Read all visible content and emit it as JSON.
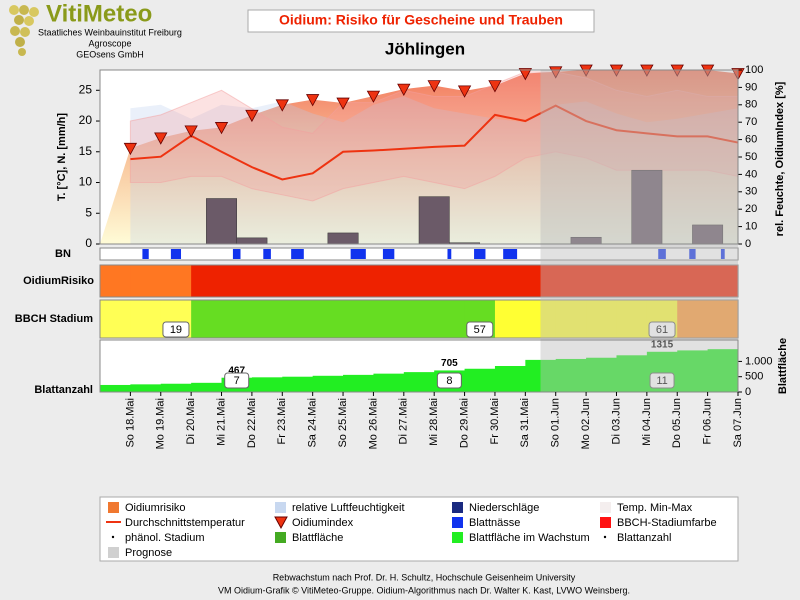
{
  "header": {
    "logo": "VitiMeteo",
    "lines": [
      "Staatliches Weinbauinstitut Freiburg",
      "Agroscope",
      "GEOsens GmbH"
    ]
  },
  "title": "Oidium: Risiko für Gescheine und Trauben",
  "subtitle": "Jöhlingen",
  "chart_data": {
    "type": "combo",
    "categories": [
      "So 18.Mai",
      "Mo 19.Mai",
      "Di 20.Mai",
      "Mi 21.Mai",
      "Do 22.Mai",
      "Fr 23.Mai",
      "Sa 24.Mai",
      "So 25.Mai",
      "Mo 26.Mai",
      "Di 27.Mai",
      "Mi 28.Mai",
      "Do 29.Mai",
      "Fr 30.Mai",
      "Sa 31.Mai",
      "So 01.Jun",
      "Mo 02.Jun",
      "Di 03.Jun",
      "Mi 04.Jun",
      "Do 05.Jun",
      "Fr 06.Jun",
      "Sa 07.Jun"
    ],
    "ylabel": "T. [°C], N. [mm/h]",
    "y2label": "rel. Feuchte, OidiumIndex [%]",
    "ylim": [
      0,
      28.3
    ],
    "yticks": [
      0,
      5,
      10,
      15,
      20,
      25
    ],
    "y2lim": [
      0,
      100
    ],
    "y2ticks": [
      0,
      10,
      20,
      30,
      40,
      50,
      60,
      70,
      80,
      90,
      100
    ],
    "humidity": {
      "color": "#b8cdee",
      "axis": "y2",
      "values": [
        78,
        80,
        72,
        80,
        78,
        82,
        75,
        70,
        80,
        85,
        78,
        75,
        72,
        70,
        80,
        82,
        75,
        70,
        72,
        75,
        78
      ]
    },
    "oidium_index": {
      "color": "#ee3311",
      "axis": "y2",
      "values": [
        55,
        61,
        65,
        67,
        74,
        80,
        83,
        81,
        85,
        89,
        91,
        88,
        91,
        98,
        99,
        100,
        100,
        100,
        100,
        100,
        98
      ]
    },
    "temp_min": {
      "values": [
        10,
        10,
        11,
        11,
        9,
        8,
        7,
        9,
        10,
        11,
        10,
        9,
        11,
        14,
        15,
        14,
        12,
        12,
        12,
        12,
        11
      ]
    },
    "temp_max": {
      "values": [
        20,
        21,
        23,
        25,
        22,
        19,
        18,
        23,
        23,
        25,
        24,
        24,
        26,
        28,
        28,
        27,
        25,
        24,
        25,
        24,
        24
      ]
    },
    "temp_band_color": "#f4a0a0",
    "temp_avg": {
      "color": "#ee3311",
      "values": [
        13.8,
        14.2,
        17.6,
        15,
        12.5,
        10.5,
        11.5,
        15,
        15.2,
        15.5,
        15.8,
        16,
        21,
        20,
        22.5,
        20,
        18.5,
        18,
        17.5,
        17.5,
        16.5
      ]
    },
    "precipitation": {
      "color": "#6b5a68",
      "values": [
        0,
        0,
        0,
        7.4,
        1,
        0,
        0,
        1.8,
        0,
        0,
        7.7,
        0.2,
        0,
        0,
        0,
        1.1,
        0,
        12,
        0,
        3.1,
        0
      ]
    },
    "leaf_wetness": {
      "label": "BN",
      "color": "#1133ee",
      "values": [
        0,
        5,
        8,
        0,
        6,
        6,
        10,
        0,
        12,
        9,
        0,
        3,
        9,
        11,
        0,
        0,
        0,
        0,
        6,
        5,
        3
      ]
    },
    "risk": {
      "label": "OidiumRisiko",
      "colors": [
        "#ff7722",
        "#ff7722",
        "#ff7722",
        "#ee2200",
        "#ee2200",
        "#ee2200",
        "#ee2200",
        "#ee2200",
        "#ee2200",
        "#ee2200",
        "#ee2200",
        "#ee2200",
        "#ee2200",
        "#ee2200",
        "#ee2200",
        "#ee2200",
        "#ee2200",
        "#ee2200",
        "#ee2200",
        "#ee2200",
        "#ee2200"
      ]
    },
    "bbch": {
      "label": "BBCH Stadium",
      "colors": [
        "#ffff55",
        "#ffff55",
        "#ffff55",
        "#66dd22",
        "#66dd22",
        "#66dd22",
        "#66dd22",
        "#66dd22",
        "#66dd22",
        "#66dd22",
        "#66dd22",
        "#66dd22",
        "#66dd22",
        "#ffff33",
        "#ffff33",
        "#ffff33",
        "#ffff33",
        "#ffff33",
        "#ffff33",
        "#ff9933",
        "#ff9933"
      ],
      "stages": [
        null,
        null,
        19,
        null,
        null,
        null,
        null,
        null,
        null,
        null,
        null,
        null,
        57,
        null,
        null,
        null,
        null,
        null,
        61,
        null,
        null
      ]
    },
    "leaf": {
      "label": "Blattanzahl",
      "ylabel": "Blattfläche",
      "color": "#22ee22",
      "ylim": [
        0,
        1700
      ],
      "yticks": [
        0,
        500,
        {
          "value": 1000,
          "label": "1.000"
        }
      ],
      "values": [
        230,
        250,
        270,
        300,
        467,
        480,
        500,
        530,
        560,
        600,
        650,
        705,
        760,
        850,
        1050,
        1080,
        1120,
        1200,
        1315,
        1360,
        1400
      ],
      "value_labels": [
        null,
        null,
        null,
        null,
        "467",
        null,
        null,
        null,
        null,
        null,
        null,
        "705",
        null,
        null,
        null,
        null,
        null,
        null,
        "1315",
        null,
        null
      ],
      "counts": [
        null,
        null,
        null,
        null,
        7,
        null,
        null,
        null,
        null,
        null,
        null,
        8,
        null,
        null,
        null,
        null,
        null,
        null,
        11,
        null,
        null
      ]
    },
    "forecast": {
      "start": "So 01.Jun",
      "color": "#bdbdbd"
    },
    "legend": [
      {
        "name": "Oidiumrisiko",
        "color": "#f07830",
        "marker": "square"
      },
      {
        "name": "relative Luftfeuchtigkeit",
        "color": "#c8d8f0",
        "marker": "square"
      },
      {
        "name": "Niederschläge",
        "color": "#1a2a80",
        "marker": "square"
      },
      {
        "name": "Temp. Min-Max",
        "color": "#f4eeee",
        "marker": "square"
      },
      {
        "name": "Durchschnittstemperatur",
        "color": "#ee3311",
        "marker": "line"
      },
      {
        "name": "Oidiumindex",
        "color": "#ee3311",
        "marker": "triangle"
      },
      {
        "name": "Blattnässe",
        "color": "#1133ee",
        "marker": "square"
      },
      {
        "name": "BBCH-Stadiumfarbe",
        "color": "#ff1111",
        "marker": "square"
      },
      {
        "name": "phänol. Stadium",
        "color": "#000000",
        "marker": "dot"
      },
      {
        "name": "Blattfläche",
        "color": "#44aa22",
        "marker": "square"
      },
      {
        "name": "Blattfläche im Wachstum",
        "color": "#22ee22",
        "marker": "square"
      },
      {
        "name": "Blattanzahl",
        "color": "#000000",
        "marker": "dot"
      },
      {
        "name": "Prognose",
        "color": "#d0d0d0",
        "marker": "square"
      }
    ]
  },
  "footer": [
    "Rebwachstum nach Prof. Dr. H. Schultz, Hochschule Geisenheim University",
    "VM Oidium-Grafik © VitiMeteo-Gruppe. Oidium-Algorithmus nach Dr. Walter K. Kast, LVWO Weinsberg."
  ]
}
